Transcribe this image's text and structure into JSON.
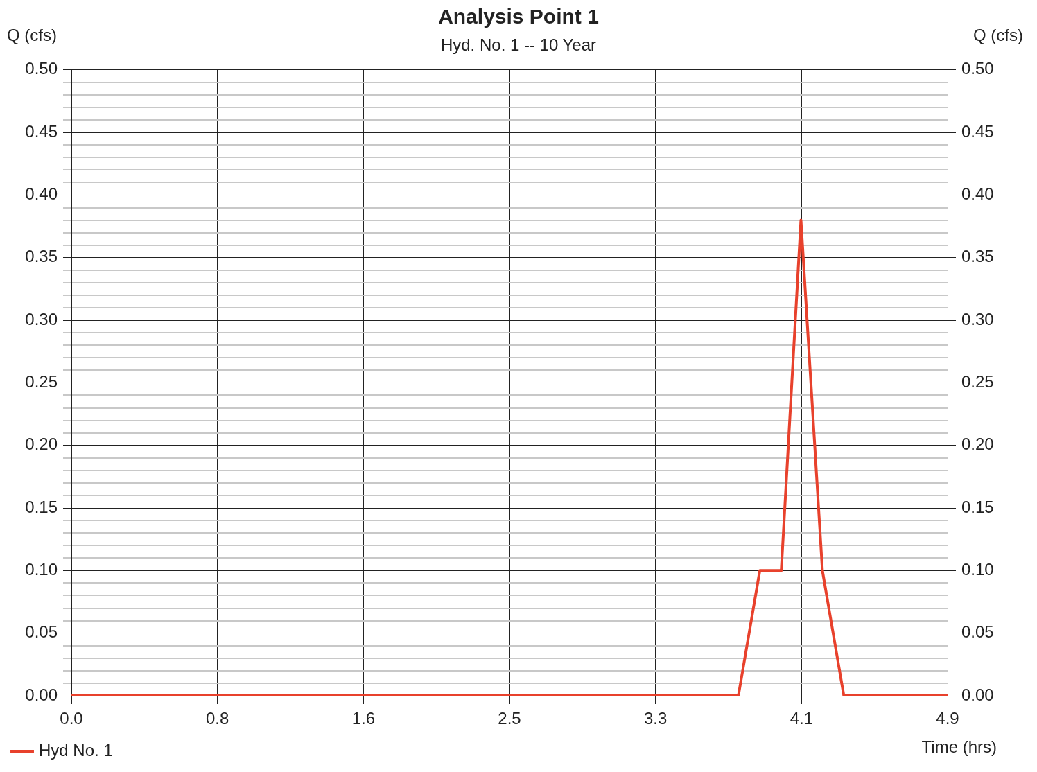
{
  "chart_data": {
    "type": "line",
    "title": "Analysis Point 1",
    "subtitle": "Hyd. No. 1 -- 10 Year",
    "xlabel": "Time (hrs)",
    "ylabel": "Q (cfs)",
    "y2label": "Q (cfs)",
    "xlim": [
      0,
      4.9
    ],
    "xticks": [
      {
        "value": 0,
        "label": "0.0"
      },
      {
        "value": 0.8167,
        "label": "0.8"
      },
      {
        "value": 1.6333,
        "label": "1.6"
      },
      {
        "value": 2.45,
        "label": "2.5"
      },
      {
        "value": 3.2667,
        "label": "3.3"
      },
      {
        "value": 4.0833,
        "label": "4.1"
      },
      {
        "value": 4.9,
        "label": "4.9"
      }
    ],
    "ylim": [
      0,
      0.5
    ],
    "yticks": [
      {
        "value": 0,
        "label": "0.00"
      },
      {
        "value": 0.01,
        "label": null
      },
      {
        "value": 0.02,
        "label": null
      },
      {
        "value": 0.03,
        "label": null
      },
      {
        "value": 0.04,
        "label": null
      },
      {
        "value": 0.05,
        "label": "0.05"
      },
      {
        "value": 0.06,
        "label": null
      },
      {
        "value": 0.07,
        "label": null
      },
      {
        "value": 0.08,
        "label": null
      },
      {
        "value": 0.09,
        "label": null
      },
      {
        "value": 0.1,
        "label": "0.10"
      },
      {
        "value": 0.11,
        "label": null
      },
      {
        "value": 0.12,
        "label": null
      },
      {
        "value": 0.13,
        "label": null
      },
      {
        "value": 0.14,
        "label": null
      },
      {
        "value": 0.15,
        "label": "0.15"
      },
      {
        "value": 0.16,
        "label": null
      },
      {
        "value": 0.17,
        "label": null
      },
      {
        "value": 0.18,
        "label": null
      },
      {
        "value": 0.19,
        "label": null
      },
      {
        "value": 0.2,
        "label": "0.20"
      },
      {
        "value": 0.21,
        "label": null
      },
      {
        "value": 0.22,
        "label": null
      },
      {
        "value": 0.23,
        "label": null
      },
      {
        "value": 0.24,
        "label": null
      },
      {
        "value": 0.25,
        "label": "0.25"
      },
      {
        "value": 0.26,
        "label": null
      },
      {
        "value": 0.27,
        "label": null
      },
      {
        "value": 0.28,
        "label": null
      },
      {
        "value": 0.29,
        "label": null
      },
      {
        "value": 0.3,
        "label": "0.30"
      },
      {
        "value": 0.31,
        "label": null
      },
      {
        "value": 0.32,
        "label": null
      },
      {
        "value": 0.33,
        "label": null
      },
      {
        "value": 0.34,
        "label": null
      },
      {
        "value": 0.35,
        "label": "0.35"
      },
      {
        "value": 0.36,
        "label": null
      },
      {
        "value": 0.37,
        "label": null
      },
      {
        "value": 0.38,
        "label": null
      },
      {
        "value": 0.39,
        "label": null
      },
      {
        "value": 0.4,
        "label": "0.40"
      },
      {
        "value": 0.41,
        "label": null
      },
      {
        "value": 0.42,
        "label": null
      },
      {
        "value": 0.43,
        "label": null
      },
      {
        "value": 0.44,
        "label": null
      },
      {
        "value": 0.45,
        "label": "0.45"
      },
      {
        "value": 0.46,
        "label": null
      },
      {
        "value": 0.47,
        "label": null
      },
      {
        "value": 0.48,
        "label": null
      },
      {
        "value": 0.49,
        "label": null
      },
      {
        "value": 0.5,
        "label": "0.50"
      }
    ],
    "y2lim": [
      0,
      0.5
    ],
    "y2ticks": [
      {
        "value": 0,
        "label": "0.00"
      },
      {
        "value": 0.05,
        "label": "0.05"
      },
      {
        "value": 0.1,
        "label": "0.10"
      },
      {
        "value": 0.15,
        "label": "0.15"
      },
      {
        "value": 0.2,
        "label": "0.20"
      },
      {
        "value": 0.25,
        "label": "0.25"
      },
      {
        "value": 0.3,
        "label": "0.30"
      },
      {
        "value": 0.35,
        "label": "0.35"
      },
      {
        "value": 0.4,
        "label": "0.40"
      },
      {
        "value": 0.45,
        "label": "0.45"
      },
      {
        "value": 0.5,
        "label": "0.50"
      }
    ],
    "grid": true,
    "legend": "bottom left",
    "marker": "none",
    "line_style": "solid",
    "series": [
      {
        "name": "Hyd No. 1",
        "color": "#e8412c",
        "x": [
          0,
          3.73,
          3.85,
          3.97,
          4.08,
          4.2,
          4.32,
          4.9
        ],
        "values": [
          0,
          0,
          0.1,
          0.1,
          0.38,
          0.1,
          0,
          0
        ]
      }
    ]
  }
}
